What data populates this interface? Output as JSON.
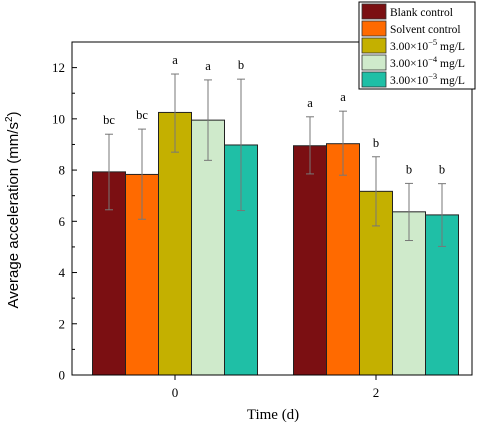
{
  "chart_data": {
    "type": "bar",
    "xlabel": "Time (d)",
    "ylabel_main": "Average acceleration (mm/s",
    "ylabel_sup": "2",
    "ylabel_close": ")",
    "categories": [
      "0",
      "2"
    ],
    "ylim": [
      0,
      13
    ],
    "yticks": [
      0,
      2,
      4,
      6,
      8,
      10,
      12
    ],
    "grid": false,
    "legend_position": "top-right",
    "series": [
      {
        "name": "Blank control",
        "color": "#7b0f12",
        "values": [
          7.93,
          8.95
        ],
        "err_low": [
          6.45,
          7.85
        ],
        "err_high": [
          9.4,
          10.08
        ],
        "sig": [
          "bc",
          "a"
        ]
      },
      {
        "name": "Solvent control",
        "color": "#ff6a00",
        "values": [
          7.83,
          9.03
        ],
        "err_low": [
          6.08,
          7.8
        ],
        "err_high": [
          9.6,
          10.3
        ],
        "sig": [
          "bc",
          "a"
        ]
      },
      {
        "name": "3.00×10⁻⁵ mg/L",
        "legend_base": "3.00×10",
        "legend_exp": "−5",
        "legend_unit": " mg/L",
        "color": "#c4b000",
        "values": [
          10.25,
          7.17
        ],
        "err_low": [
          8.7,
          5.82
        ],
        "err_high": [
          11.75,
          8.52
        ],
        "sig": [
          "a",
          "b"
        ]
      },
      {
        "name": "3.00×10⁻⁴ mg/L",
        "legend_base": "3.00×10",
        "legend_exp": "−4",
        "legend_unit": " mg/L",
        "color": "#cfeacb",
        "values": [
          9.95,
          6.37
        ],
        "err_low": [
          8.38,
          5.25
        ],
        "err_high": [
          11.52,
          7.48
        ],
        "sig": [
          "a",
          "b"
        ]
      },
      {
        "name": "3.00×10⁻³ mg/L",
        "legend_base": "3.00×10",
        "legend_exp": "−3",
        "legend_unit": " mg/L",
        "color": "#1fbfa6",
        "values": [
          8.98,
          6.25
        ],
        "err_low": [
          6.42,
          5.02
        ],
        "err_high": [
          11.55,
          7.47
        ],
        "sig": [
          "b",
          "b"
        ]
      }
    ]
  }
}
